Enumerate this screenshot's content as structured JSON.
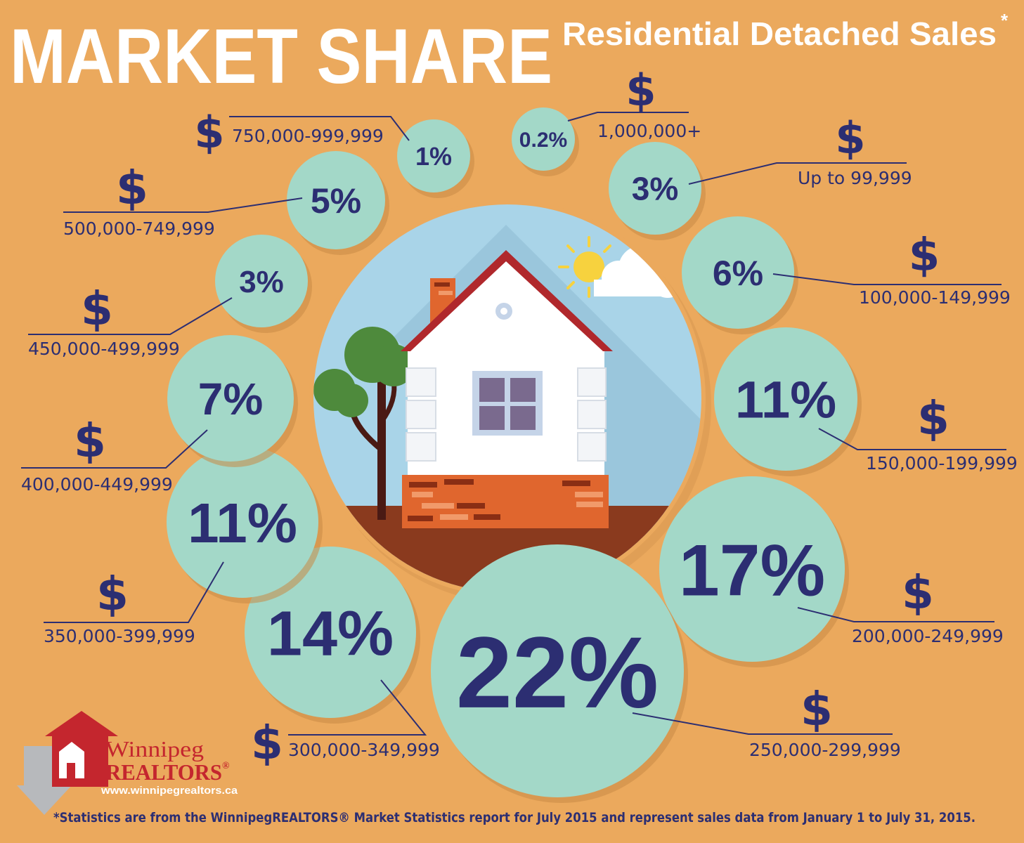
{
  "header": {
    "title": "MARKET SHARE",
    "subtitle": "Residential Detached Sales",
    "subtitle_mark": "*"
  },
  "currency_symbol": "$",
  "chart_data": {
    "type": "bubble",
    "title": "MARKET SHARE Residential Detached Sales*",
    "unit": "%",
    "segments": [
      {
        "range": "Up to 99,999",
        "label": "3%",
        "value": 3
      },
      {
        "range": "100,000-149,999",
        "label": "6%",
        "value": 6
      },
      {
        "range": "150,000-199,999",
        "label": "11%",
        "value": 11
      },
      {
        "range": "200,000-249,999",
        "label": "17%",
        "value": 17
      },
      {
        "range": "250,000-299,999",
        "label": "22%",
        "value": 22
      },
      {
        "range": "300,000-349,999",
        "label": "14%",
        "value": 14
      },
      {
        "range": "350,000-399,999",
        "label": "11%",
        "value": 11
      },
      {
        "range": "400,000-449,999",
        "label": "7%",
        "value": 7
      },
      {
        "range": "450,000-499,999",
        "label": "3%",
        "value": 3
      },
      {
        "range": "500,000-749,999",
        "label": "5%",
        "value": 5
      },
      {
        "range": "750,000-999,999",
        "label": "1%",
        "value": 1
      },
      {
        "range": "1,000,000+",
        "label": "0.2%",
        "value": 0.2
      }
    ]
  },
  "logo": {
    "line1": "Winnipeg",
    "line2": "REALTORS",
    "reg": "®",
    "url": "www.winnipegrealtors.ca"
  },
  "footnote": "*Statistics are from the WinnipegREALTORS® Market Statistics report for July 2015 and represent sales data from January 1 to July 31, 2015.",
  "colors": {
    "background": "#eba95d",
    "bubble": "#a3d8c8",
    "text": "#2c2e72",
    "sky": "#a9d4e8",
    "roof": "#b0282c",
    "brick": "#e0662e",
    "ground": "#8a3a1e",
    "tree": "#4e8a3c",
    "logo_red": "#c4262e"
  }
}
